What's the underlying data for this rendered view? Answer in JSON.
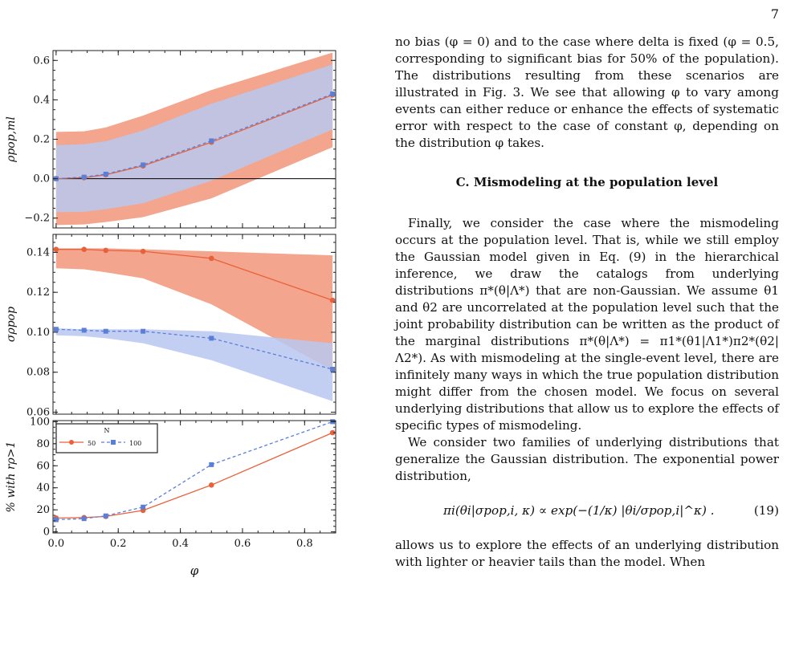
{
  "page_number": "7",
  "figure": {
    "x_axis_label": "φ",
    "x_ticks": [
      0.0,
      0.2,
      0.4,
      0.6,
      0.8
    ],
    "x_tick_labels": [
      "0.0",
      "0.2",
      "0.4",
      "0.6",
      "0.8"
    ],
    "panels": [
      {
        "id": "rho",
        "ylabel": "ρpop,ml",
        "y_ticks": [
          -0.2,
          0.0,
          0.2,
          0.4,
          0.6
        ],
        "y_tick_labels": [
          "−0.2",
          "0.0",
          "0.2",
          "0.4",
          "0.6"
        ],
        "ylim": [
          -0.25,
          0.65
        ],
        "has_zero_line": true
      },
      {
        "id": "sigma",
        "ylabel": "σρpop",
        "y_ticks": [
          0.06,
          0.08,
          0.1,
          0.12,
          0.14
        ],
        "y_tick_labels": [
          "0.06",
          "0.08",
          "0.10",
          "0.12",
          "0.14"
        ],
        "ylim": [
          0.059,
          0.149
        ],
        "has_zero_line": false
      },
      {
        "id": "percent",
        "ylabel": "% with rρ>1",
        "y_ticks": [
          0,
          20,
          40,
          60,
          80,
          100
        ],
        "y_tick_labels": [
          "0",
          "20",
          "40",
          "60",
          "80",
          "100"
        ],
        "ylim": [
          -1,
          101
        ],
        "has_zero_line": false
      }
    ],
    "legend": {
      "title": "N",
      "entries": [
        "50",
        "100"
      ]
    }
  },
  "chart_data": [
    {
      "type": "line",
      "x": [
        0.0,
        0.09,
        0.16,
        0.28,
        0.5,
        0.89
      ],
      "ylim": [
        -0.25,
        0.65
      ],
      "series": [
        {
          "name": "50",
          "color": "#e8613a",
          "values": [
            0.0,
            0.005,
            0.02,
            0.065,
            0.185,
            0.425
          ],
          "band": {
            "color": "#f3a58e",
            "lower": [
              -0.235,
              -0.232,
              -0.22,
              -0.195,
              -0.1,
              0.16
            ],
            "upper": [
              0.237,
              0.24,
              0.26,
              0.32,
              0.45,
              0.64
            ]
          }
        },
        {
          "name": "100",
          "color": "#5b7fd6",
          "values": [
            0.0,
            0.008,
            0.023,
            0.07,
            0.192,
            0.43
          ],
          "band": {
            "color": "#b8c7f0",
            "lower": [
              -0.17,
              -0.168,
              -0.155,
              -0.125,
              -0.01,
              0.25
            ],
            "upper": [
              0.17,
              0.175,
              0.19,
              0.245,
              0.38,
              0.58
            ]
          }
        }
      ]
    },
    {
      "type": "line",
      "x": [
        0.0,
        0.09,
        0.16,
        0.28,
        0.5,
        0.89
      ],
      "ylim": [
        0.059,
        0.149
      ],
      "series": [
        {
          "name": "50",
          "color": "#e8613a",
          "values": [
            0.1415,
            0.1415,
            0.141,
            0.1405,
            0.137,
            0.116
          ],
          "band": {
            "color": "#f3a58e",
            "lower": [
              0.132,
              0.1315,
              0.13,
              0.127,
              0.114,
              0.081
            ],
            "upper": [
              0.142,
              0.142,
              0.142,
              0.1415,
              0.1405,
              0.1385
            ]
          }
        },
        {
          "name": "100",
          "color": "#5b7fd6",
          "values": [
            0.1015,
            0.101,
            0.1005,
            0.1005,
            0.097,
            0.0815
          ],
          "band": {
            "color": "#b8c7f0",
            "lower": [
              0.0985,
              0.098,
              0.097,
              0.0945,
              0.086,
              0.0655
            ],
            "upper": [
              0.102,
              0.1015,
              0.1015,
              0.1015,
              0.1005,
              0.0945
            ]
          }
        }
      ]
    },
    {
      "type": "line",
      "x": [
        0.0,
        0.09,
        0.16,
        0.28,
        0.5,
        0.89
      ],
      "ylim": [
        -1,
        101
      ],
      "series": [
        {
          "name": "50",
          "color": "#e8613a",
          "values": [
            12.5,
            13,
            14,
            19.5,
            42.5,
            90
          ]
        },
        {
          "name": "100",
          "color": "#5b7fd6",
          "values": [
            11,
            12,
            14.5,
            22.5,
            61,
            100
          ]
        }
      ]
    }
  ],
  "text": {
    "para1": "no bias (φ = 0) and to the case where delta is fixed (φ = 0.5, corresponding to significant bias for 50% of the population). The distributions resulting from these scenarios are illustrated in Fig. 3. We see that allowing φ to vary among events can either reduce or enhance the effects of systematic error with respect to the case of constant φ, depending on the distribution φ takes.",
    "section_heading": "C.   Mismodeling at the population level",
    "para2": "Finally, we consider the case where the mismodeling occurs at the population level. That is, while we still employ the Gaussian model given in Eq. (9) in the hierarchical inference, we draw the catalogs from underlying distributions π*(θ|Λ*) that are non-Gaussian. We assume θ1 and θ2 are uncorrelated at the population level such that the joint probability distribution can be written as the product of the marginal distributions π*(θ|Λ*) = π1*(θ1|Λ1*)π2*(θ2|Λ2*). As with mismodeling at the single-event level, there are infinitely many ways in which the true population distribution might differ from the chosen model. We focus on several underlying distributions that allow us to explore the effects of specific types of mismodeling.",
    "para3": "We consider two families of underlying distributions that generalize the Gaussian distribution. The exponential power distribution,",
    "equation": "πi(θi|σpop,i, κ) ∝ exp(−(1/κ) |θi/σpop,i|^κ) .",
    "equation_number": "(19)",
    "para4": "allows us to explore the effects of an underlying distribution with lighter or heavier tails than the model. When"
  }
}
